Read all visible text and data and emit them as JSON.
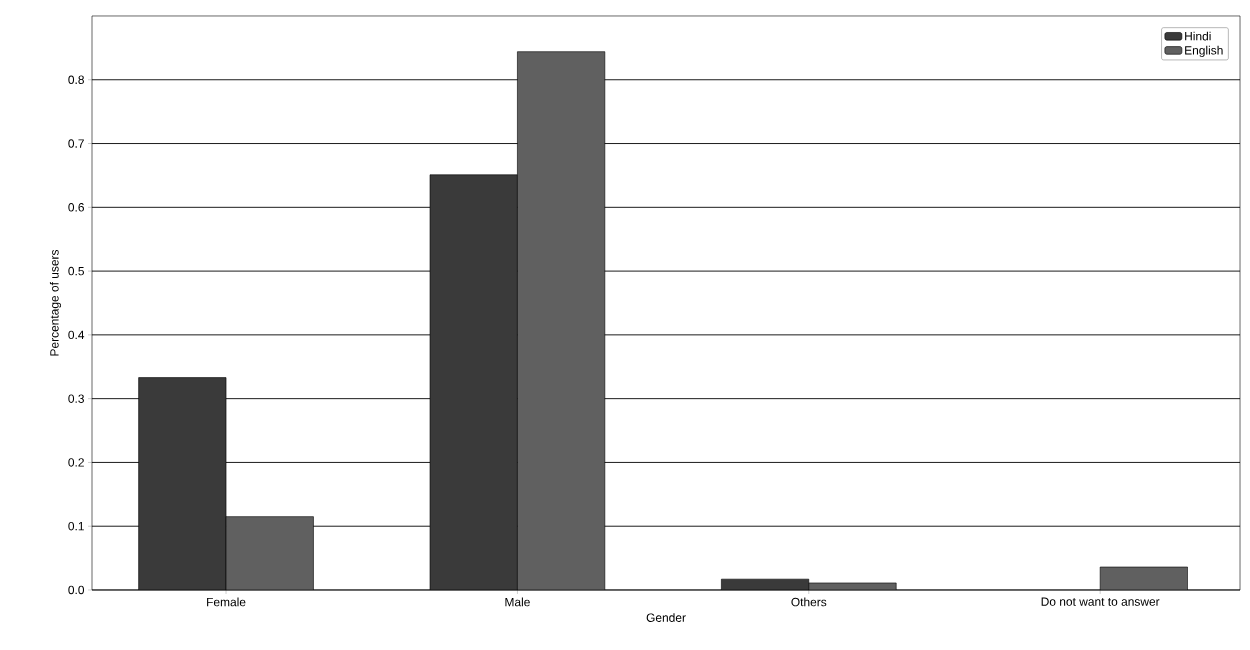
{
  "chart_data": {
    "type": "bar",
    "xlabel": "Gender",
    "ylabel": "Percentage of users",
    "categories": [
      "Female",
      "Male",
      "Others",
      "Do not want to answer"
    ],
    "series": [
      {
        "name": "Hindi",
        "color": "#3a3a3a",
        "values": [
          0.333,
          0.651,
          0.017,
          null
        ]
      },
      {
        "name": "English",
        "color": "#606060",
        "values": [
          0.115,
          0.844,
          0.011,
          0.036
        ]
      }
    ],
    "ylim": [
      0,
      0.9
    ],
    "yticks": [
      {
        "value": 0,
        "label": "0.0"
      },
      0.1,
      0.2,
      0.3,
      0.4,
      0.5,
      0.6,
      0.7,
      0.8
    ],
    "grid": "y",
    "legend": "top right"
  }
}
